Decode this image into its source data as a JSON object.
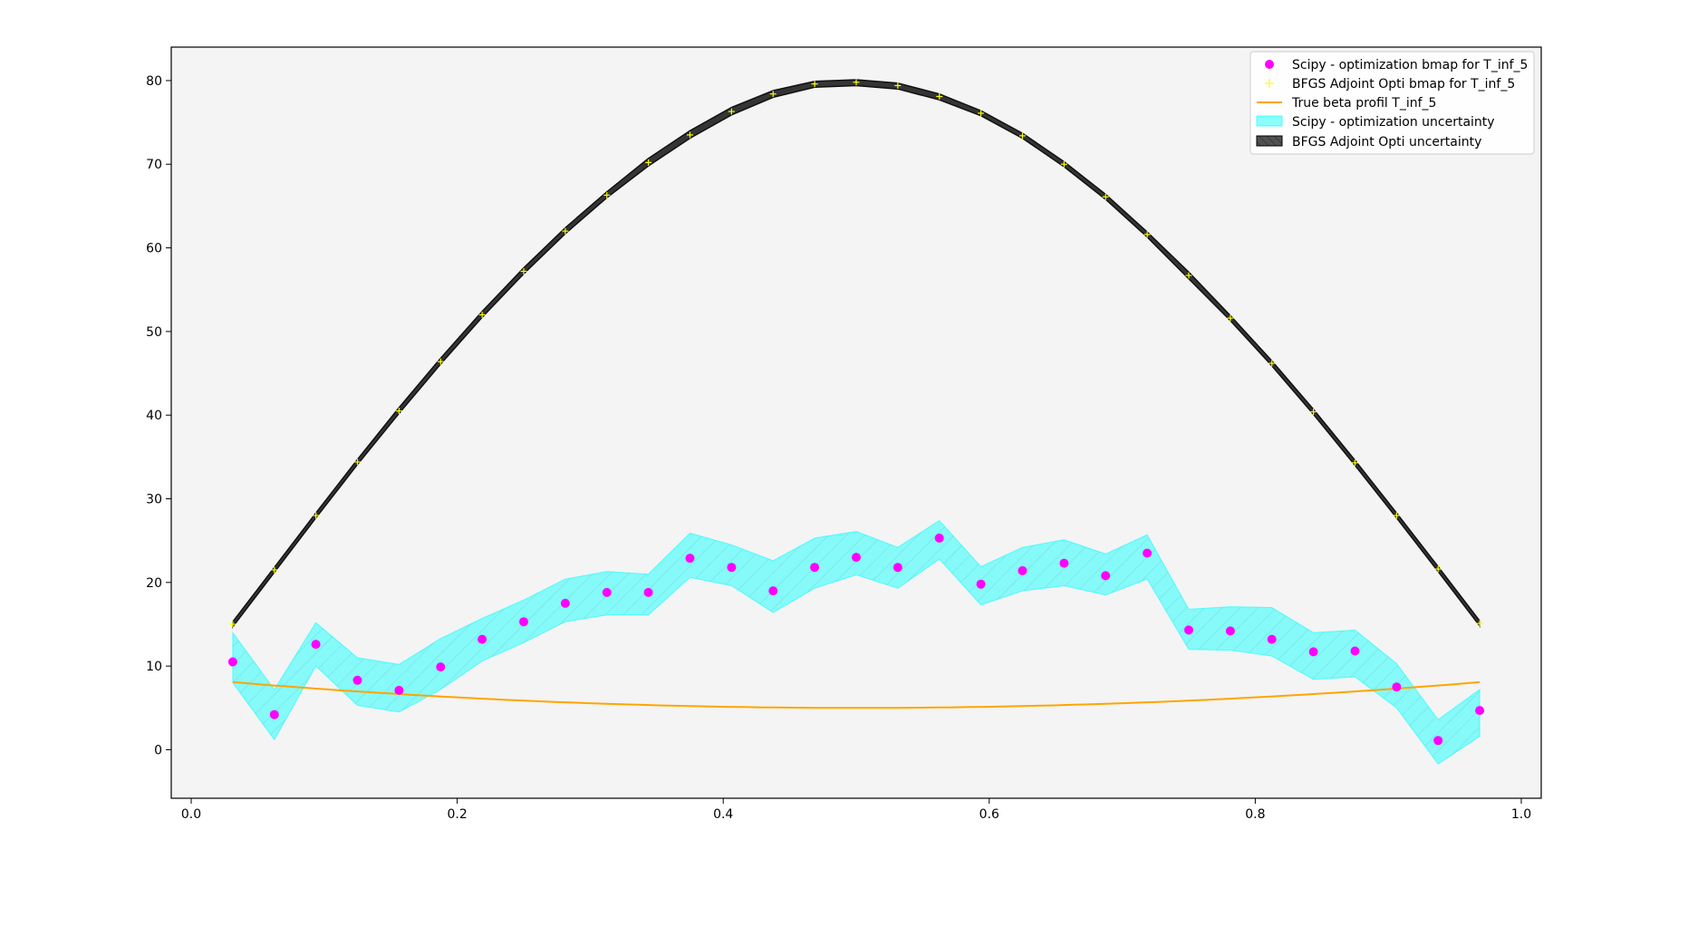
{
  "chart_data": {
    "type": "scatter",
    "title": "",
    "xlabel": "",
    "ylabel": "",
    "xlim": [
      -0.015,
      1.015
    ],
    "ylim": [
      -5.8,
      84.0
    ],
    "xticks": [
      "0.0",
      "0.2",
      "0.4",
      "0.6",
      "0.8",
      "1.0"
    ],
    "yticks": [
      "0",
      "10",
      "20",
      "30",
      "40",
      "50",
      "60",
      "70",
      "80"
    ],
    "grid": false,
    "legend_position": "top-right",
    "background_color": "#f4f4f4",
    "x": [
      0.03125,
      0.0625,
      0.09375,
      0.125,
      0.15625,
      0.1875,
      0.21875,
      0.25,
      0.28125,
      0.3125,
      0.34375,
      0.375,
      0.40625,
      0.4375,
      0.46875,
      0.5,
      0.53125,
      0.5625,
      0.59375,
      0.625,
      0.65625,
      0.6875,
      0.71875,
      0.75,
      0.78125,
      0.8125,
      0.84375,
      0.875,
      0.90625,
      0.9375,
      0.96875
    ],
    "series": [
      {
        "name": "Scipy - optimization bmap for T_inf_5",
        "kind": "markers",
        "marker": "circle",
        "color": "#ff00ff",
        "values": [
          10.5,
          4.2,
          12.6,
          8.3,
          7.1,
          9.9,
          13.2,
          15.3,
          17.5,
          18.8,
          18.8,
          22.9,
          21.8,
          19.0,
          21.8,
          23.0,
          21.8,
          25.3,
          19.8,
          21.4,
          22.3,
          20.8,
          23.5,
          14.3,
          14.2,
          13.2,
          11.7,
          11.8,
          7.5,
          1.1,
          4.7
        ]
      },
      {
        "name": "BFGS Adjoint Opti bmap for T_inf_5",
        "kind": "markers",
        "marker": "plus",
        "color": "#ffff00",
        "values": [
          15.0,
          21.5,
          28.0,
          34.4,
          40.5,
          46.4,
          52.0,
          57.2,
          62.0,
          66.3,
          70.2,
          73.5,
          76.3,
          78.4,
          79.6,
          79.8,
          79.4,
          78.1,
          76.1,
          73.4,
          70.0,
          66.1,
          61.6,
          56.7,
          51.6,
          46.2,
          40.4,
          34.3,
          28.0,
          21.6,
          15.1
        ]
      },
      {
        "name": "True beta profil T_inf_5",
        "kind": "line",
        "color": "#ffa500",
        "x_range": [
          0.03125,
          0.96875
        ],
        "formula": "5.0 + 14.0 * (x - 0.5)^2"
      },
      {
        "name": "Scipy - optimization uncertainty",
        "kind": "band",
        "color": "#00ffff",
        "lower": [
          8.0,
          1.2,
          10.0,
          5.3,
          4.5,
          7.2,
          10.6,
          12.8,
          15.3,
          16.1,
          16.1,
          20.6,
          19.6,
          16.4,
          19.3,
          20.9,
          19.3,
          22.8,
          17.3,
          19.0,
          19.6,
          18.5,
          20.4,
          12.0,
          11.9,
          11.2,
          8.4,
          8.7,
          5.0,
          -1.7,
          1.6
        ],
        "upper": [
          14.0,
          7.2,
          15.2,
          11.0,
          10.2,
          13.3,
          15.7,
          17.9,
          20.4,
          21.3,
          21.0,
          25.9,
          24.5,
          22.6,
          25.3,
          26.1,
          24.2,
          27.4,
          21.9,
          24.2,
          25.1,
          23.4,
          25.7,
          16.8,
          17.1,
          17.0,
          14.0,
          14.3,
          10.3,
          3.6,
          7.2
        ]
      },
      {
        "name": "BFGS Adjoint Opti uncertainty",
        "kind": "band",
        "color": "#202020",
        "lower": [
          14.7,
          21.2,
          27.7,
          34.1,
          40.2,
          46.1,
          51.7,
          56.9,
          61.7,
          66.0,
          69.8,
          73.1,
          75.9,
          78.0,
          79.2,
          79.4,
          79.0,
          77.7,
          75.8,
          73.1,
          69.7,
          65.8,
          61.3,
          56.3,
          51.3,
          45.9,
          40.1,
          34.0,
          27.7,
          21.3,
          14.8
        ],
        "upper": [
          15.3,
          21.8,
          28.3,
          34.7,
          40.9,
          46.8,
          52.4,
          57.6,
          62.4,
          66.7,
          70.7,
          74.0,
          76.8,
          78.8,
          79.9,
          80.1,
          79.7,
          78.4,
          76.4,
          73.7,
          70.3,
          66.4,
          61.9,
          57.1,
          51.9,
          46.5,
          40.7,
          34.6,
          28.3,
          21.9,
          15.4
        ]
      }
    ]
  }
}
